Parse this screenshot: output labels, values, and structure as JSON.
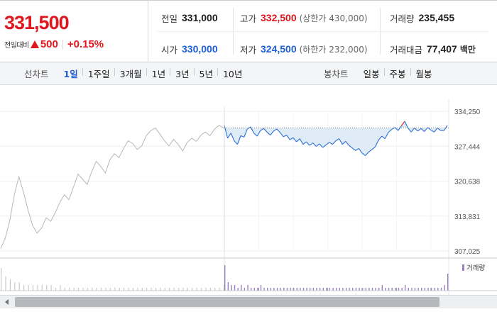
{
  "summary": {
    "current_price": "331,500",
    "change_label": "전일대비",
    "change_value": "500",
    "change_rate": "+0.15%",
    "stats": {
      "prev_close": {
        "label": "전일",
        "value": "331,000"
      },
      "high": {
        "label": "고가",
        "value": "332,500",
        "sub": "(상한가 430,000)"
      },
      "volume": {
        "label": "거래량",
        "value": "235,455"
      },
      "open": {
        "label": "시가",
        "value": "330,000"
      },
      "low": {
        "label": "저가",
        "value": "324,500",
        "sub": "(하한가 232,000)"
      },
      "trade_amount": {
        "label": "거래대금",
        "value": "77,407",
        "unit": "백만"
      }
    }
  },
  "tabs": {
    "line_chart_label": "선차트",
    "line_periods": [
      "1일",
      "1주일",
      "3개월",
      "1년",
      "3년",
      "5년",
      "10년"
    ],
    "line_active": "1일",
    "candle_chart_label": "봉차트",
    "candle_periods": [
      "일봉",
      "주봉",
      "월봉"
    ]
  },
  "colors": {
    "up": "#e0161e",
    "down": "#1f5fd0",
    "today_line": "#2b6fd6",
    "prev_line": "#b8b8b8",
    "fill": "#dde9f7",
    "volume_bar": "#9a7fc4"
  },
  "chart_data": {
    "type": "line",
    "y_ticks": [
      "334,250",
      "327,444",
      "320,638",
      "313,831",
      "307,025"
    ],
    "ylim": [
      307025,
      334250
    ],
    "reference_price": 331000,
    "volume_label": "거래량",
    "prev_day_series": [
      307500,
      309500,
      313000,
      318000,
      321500,
      318500,
      315000,
      312000,
      310500,
      311500,
      313500,
      312800,
      314500,
      316500,
      318000,
      317000,
      319500,
      322000,
      321000,
      320000,
      322500,
      324500,
      323500,
      322200,
      324800,
      326000,
      325200,
      327000,
      328500,
      328000,
      326800,
      327500,
      329500,
      330500,
      331000,
      329800,
      328500,
      327500,
      328800,
      327800,
      326500,
      328200,
      329000,
      328400,
      329600,
      330200,
      329500,
      330800,
      331500,
      331000
    ],
    "today_series": [
      331500,
      329000,
      330000,
      328500,
      327800,
      329500,
      329200,
      330800,
      331200,
      330000,
      329400,
      330500,
      330900,
      330200,
      329600,
      330400,
      330800,
      330100,
      329300,
      329600,
      328700,
      329100,
      328300,
      328900,
      327800,
      328300,
      327600,
      328100,
      327400,
      327900,
      327200,
      327700,
      328200,
      327800,
      328500,
      328900,
      327800,
      328400,
      327600,
      327100,
      326600,
      327000,
      326100,
      325600,
      326300,
      326800,
      327300,
      328600,
      329400,
      328900,
      330100,
      330700,
      331100,
      330500,
      331400,
      332300,
      331000,
      330200,
      331000,
      330400,
      330900,
      330300,
      331100,
      330600,
      330200,
      331000,
      330500,
      330500,
      331500
    ],
    "today_volume": [
      9,
      3,
      2,
      2,
      1,
      2,
      1,
      2,
      1,
      1,
      1,
      2,
      1,
      1,
      1,
      1,
      1,
      1,
      1,
      1,
      1,
      1,
      1,
      1,
      1,
      1,
      1,
      1,
      1,
      1,
      1,
      1,
      1,
      1,
      1,
      1,
      1,
      1,
      1,
      1,
      1,
      1,
      1,
      1,
      1,
      1,
      1,
      1,
      2,
      1,
      1,
      1,
      1,
      1,
      1,
      2,
      1,
      1,
      1,
      1,
      1,
      1,
      1,
      1,
      1,
      1,
      1,
      2,
      6
    ],
    "prev_volume": [
      8,
      5,
      4,
      3,
      3,
      2,
      2,
      2,
      2,
      2,
      2,
      2,
      1,
      2,
      1,
      1,
      1,
      1,
      1,
      1,
      1,
      1,
      1,
      1,
      1,
      1,
      1,
      1,
      1,
      1,
      1,
      1,
      1,
      1,
      1,
      1,
      1,
      1,
      1,
      1,
      1,
      1,
      1,
      1,
      1,
      1,
      1,
      1,
      1,
      2
    ]
  }
}
